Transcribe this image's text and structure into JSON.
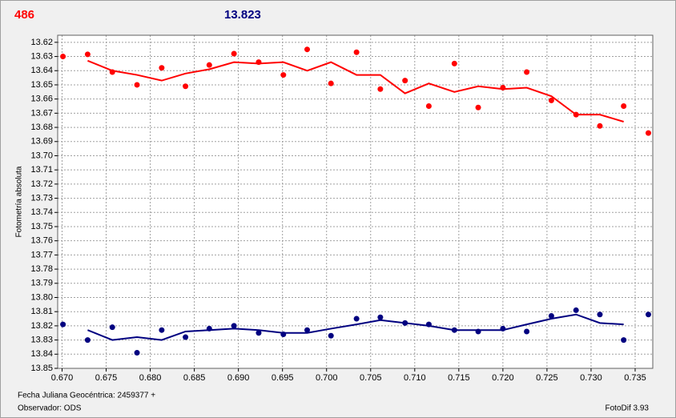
{
  "header": {
    "count": "486",
    "magnitude": "13.823"
  },
  "footer": {
    "date": "Fecha Juliana Geocéntrica: 2459377 +",
    "observer": "Observador: ODS",
    "version": "FotoDif 3.93"
  },
  "chart_data": {
    "type": "scatter",
    "y_label": "Fotometría absoluta",
    "grid": true,
    "xlim": [
      0.6695,
      0.737
    ],
    "ylim": [
      13.85,
      13.615
    ],
    "xticks": [
      {
        "value": 0.67,
        "label": "0.670"
      },
      0.675,
      {
        "value": 0.68,
        "label": "0.680"
      },
      0.685,
      {
        "value": 0.69,
        "label": "0.690"
      },
      0.695,
      {
        "value": 0.7,
        "label": "0.700"
      },
      0.705,
      {
        "value": 0.71,
        "label": "0.710"
      },
      0.715,
      {
        "value": 0.72,
        "label": "0.720"
      },
      0.725,
      {
        "value": 0.73,
        "label": "0.730"
      },
      0.735
    ],
    "yticks": [
      13.62,
      13.63,
      13.64,
      13.65,
      13.66,
      13.67,
      13.68,
      13.69,
      {
        "value": 13.7,
        "label": "13.70"
      },
      13.71,
      13.72,
      13.73,
      13.74,
      13.75,
      13.76,
      13.77,
      13.78,
      13.79,
      {
        "value": 13.8,
        "label": "13.80"
      },
      13.81,
      13.82,
      13.83,
      13.84,
      13.85
    ],
    "x": [
      0.6701,
      0.6729,
      0.6757,
      0.6785,
      0.6813,
      0.684,
      0.6867,
      0.6895,
      0.6923,
      0.6951,
      0.6978,
      0.7005,
      0.7034,
      0.7061,
      0.7089,
      0.7116,
      0.7145,
      0.7172,
      0.72,
      0.7227,
      0.7255,
      0.7283,
      0.731,
      0.7337,
      0.7365
    ],
    "series": [
      {
        "color": "#ff0000",
        "style": "dots",
        "values": [
          13.63,
          13.6285,
          13.641,
          13.65,
          13.638,
          13.651,
          13.636,
          13.628,
          13.634,
          13.643,
          13.625,
          13.649,
          13.627,
          13.653,
          13.647,
          13.665,
          13.635,
          13.666,
          13.652,
          13.641,
          13.661,
          13.671,
          13.679,
          13.665,
          13.684
        ]
      },
      {
        "color": "#ff0000",
        "style": "line",
        "values": [
          null,
          13.633,
          13.64,
          13.643,
          13.647,
          13.642,
          13.639,
          13.634,
          13.635,
          13.634,
          13.64,
          13.634,
          13.643,
          13.643,
          13.656,
          13.649,
          13.655,
          13.651,
          13.653,
          13.652,
          13.658,
          13.671,
          13.671,
          13.676,
          null
        ]
      },
      {
        "color": "#000080",
        "style": "dots",
        "values": [
          13.819,
          13.83,
          13.821,
          13.839,
          13.823,
          13.828,
          13.822,
          13.82,
          13.825,
          13.826,
          13.823,
          13.827,
          13.815,
          13.814,
          13.818,
          13.819,
          13.823,
          13.824,
          13.822,
          13.824,
          13.813,
          13.809,
          13.812,
          13.83,
          13.812
        ]
      },
      {
        "color": "#000080",
        "style": "line",
        "values": [
          null,
          13.823,
          13.83,
          13.828,
          13.83,
          13.824,
          13.823,
          13.822,
          13.823,
          13.825,
          13.825,
          13.822,
          13.819,
          13.816,
          13.818,
          13.82,
          13.823,
          13.823,
          13.823,
          13.819,
          13.815,
          13.812,
          13.818,
          13.819,
          null
        ]
      }
    ]
  }
}
